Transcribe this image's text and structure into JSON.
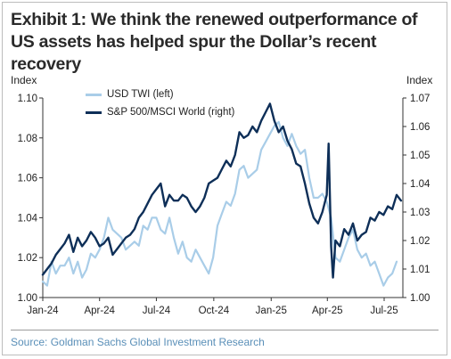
{
  "header": {
    "title": "Exhibit 1: We think the renewed outperformance of US assets has helped spur the Dollar’s recent recovery"
  },
  "footer": {
    "source": "Source: Goldman Sachs Global Investment Research"
  },
  "chart_data": {
    "type": "line",
    "left_axis_title": "Index",
    "right_axis_title": "Index",
    "x_ticks": [
      "Jan-24",
      "Apr-24",
      "Jul-24",
      "Oct-24",
      "Jan-25",
      "Apr-25",
      "Jul-25"
    ],
    "x_tick_dates": [
      "2024-01-01",
      "2024-04-01",
      "2024-07-01",
      "2024-10-01",
      "2025-01-01",
      "2025-04-01",
      "2025-07-01"
    ],
    "x_range": [
      "2024-01-01",
      "2025-07-31"
    ],
    "left_ylim": [
      1.0,
      1.1
    ],
    "left_ticks": [
      "1.00",
      "1.02",
      "1.04",
      "1.06",
      "1.08",
      "1.10"
    ],
    "right_ylim": [
      1.0,
      1.07
    ],
    "right_ticks": [
      "1.00",
      "1.01",
      "1.02",
      "1.03",
      "1.04",
      "1.05",
      "1.06",
      "1.07"
    ],
    "legend_position": "top-left",
    "grid": false,
    "series": [
      {
        "name": "USD TWI (left)",
        "axis": "left",
        "color": "#a9cde8",
        "points": [
          [
            "2024-01-01",
            1.008
          ],
          [
            "2024-01-08",
            1.006
          ],
          [
            "2024-01-15",
            1.018
          ],
          [
            "2024-01-22",
            1.012
          ],
          [
            "2024-01-29",
            1.016
          ],
          [
            "2024-02-05",
            1.016
          ],
          [
            "2024-02-12",
            1.02
          ],
          [
            "2024-02-19",
            1.012
          ],
          [
            "2024-02-26",
            1.018
          ],
          [
            "2024-03-04",
            1.01
          ],
          [
            "2024-03-11",
            1.014
          ],
          [
            "2024-03-18",
            1.022
          ],
          [
            "2024-03-25",
            1.02
          ],
          [
            "2024-04-01",
            1.024
          ],
          [
            "2024-04-08",
            1.03
          ],
          [
            "2024-04-15",
            1.04
          ],
          [
            "2024-04-22",
            1.034
          ],
          [
            "2024-04-29",
            1.032
          ],
          [
            "2024-05-06",
            1.03
          ],
          [
            "2024-05-13",
            1.024
          ],
          [
            "2024-05-20",
            1.026
          ],
          [
            "2024-05-27",
            1.028
          ],
          [
            "2024-06-03",
            1.026
          ],
          [
            "2024-06-10",
            1.036
          ],
          [
            "2024-06-17",
            1.034
          ],
          [
            "2024-06-24",
            1.04
          ],
          [
            "2024-07-01",
            1.04
          ],
          [
            "2024-07-08",
            1.034
          ],
          [
            "2024-07-15",
            1.032
          ],
          [
            "2024-07-22",
            1.04
          ],
          [
            "2024-07-29",
            1.03
          ],
          [
            "2024-08-05",
            1.022
          ],
          [
            "2024-08-12",
            1.028
          ],
          [
            "2024-08-19",
            1.02
          ],
          [
            "2024-08-26",
            1.018
          ],
          [
            "2024-09-02",
            1.024
          ],
          [
            "2024-09-09",
            1.02
          ],
          [
            "2024-09-16",
            1.016
          ],
          [
            "2024-09-23",
            1.012
          ],
          [
            "2024-09-30",
            1.02
          ],
          [
            "2024-10-07",
            1.036
          ],
          [
            "2024-10-14",
            1.042
          ],
          [
            "2024-10-21",
            1.048
          ],
          [
            "2024-10-28",
            1.046
          ],
          [
            "2024-11-04",
            1.052
          ],
          [
            "2024-11-11",
            1.064
          ],
          [
            "2024-11-18",
            1.066
          ],
          [
            "2024-11-25",
            1.06
          ],
          [
            "2024-12-02",
            1.062
          ],
          [
            "2024-12-09",
            1.064
          ],
          [
            "2024-12-16",
            1.074
          ],
          [
            "2024-12-23",
            1.078
          ],
          [
            "2024-12-30",
            1.082
          ],
          [
            "2025-01-06",
            1.086
          ],
          [
            "2025-01-13",
            1.088
          ],
          [
            "2025-01-20",
            1.08
          ],
          [
            "2025-01-27",
            1.076
          ],
          [
            "2025-02-03",
            1.082
          ],
          [
            "2025-02-10",
            1.076
          ],
          [
            "2025-02-17",
            1.072
          ],
          [
            "2025-02-24",
            1.074
          ],
          [
            "2025-03-03",
            1.06
          ],
          [
            "2025-03-10",
            1.05
          ],
          [
            "2025-03-17",
            1.05
          ],
          [
            "2025-03-24",
            1.052
          ],
          [
            "2025-03-31",
            1.048
          ],
          [
            "2025-04-07",
            1.04
          ],
          [
            "2025-04-14",
            1.02
          ],
          [
            "2025-04-21",
            1.018
          ],
          [
            "2025-04-28",
            1.024
          ],
          [
            "2025-05-05",
            1.03
          ],
          [
            "2025-05-12",
            1.034
          ],
          [
            "2025-05-19",
            1.024
          ],
          [
            "2025-05-26",
            1.02
          ],
          [
            "2025-06-02",
            1.022
          ],
          [
            "2025-06-09",
            1.016
          ],
          [
            "2025-06-16",
            1.018
          ],
          [
            "2025-06-23",
            1.012
          ],
          [
            "2025-06-30",
            1.006
          ],
          [
            "2025-07-07",
            1.01
          ],
          [
            "2025-07-14",
            1.012
          ],
          [
            "2025-07-21",
            1.018
          ]
        ]
      },
      {
        "name": "S&P 500/MSCI World (right)",
        "axis": "right",
        "color": "#0e2f58",
        "points": [
          [
            "2024-01-01",
            1.008
          ],
          [
            "2024-01-08",
            1.01
          ],
          [
            "2024-01-15",
            1.012
          ],
          [
            "2024-01-22",
            1.015
          ],
          [
            "2024-01-29",
            1.017
          ],
          [
            "2024-02-05",
            1.019
          ],
          [
            "2024-02-12",
            1.022
          ],
          [
            "2024-02-19",
            1.016
          ],
          [
            "2024-02-26",
            1.021
          ],
          [
            "2024-03-04",
            1.018
          ],
          [
            "2024-03-11",
            1.02
          ],
          [
            "2024-03-18",
            1.023
          ],
          [
            "2024-03-25",
            1.021
          ],
          [
            "2024-04-01",
            1.018
          ],
          [
            "2024-04-08",
            1.019
          ],
          [
            "2024-04-15",
            1.021
          ],
          [
            "2024-04-22",
            1.015
          ],
          [
            "2024-04-29",
            1.017
          ],
          [
            "2024-05-06",
            1.019
          ],
          [
            "2024-05-13",
            1.021
          ],
          [
            "2024-05-20",
            1.022
          ],
          [
            "2024-05-27",
            1.024
          ],
          [
            "2024-06-03",
            1.028
          ],
          [
            "2024-06-10",
            1.03
          ],
          [
            "2024-06-17",
            1.033
          ],
          [
            "2024-06-24",
            1.036
          ],
          [
            "2024-07-01",
            1.038
          ],
          [
            "2024-07-08",
            1.04
          ],
          [
            "2024-07-15",
            1.032
          ],
          [
            "2024-07-22",
            1.036
          ],
          [
            "2024-07-29",
            1.034
          ],
          [
            "2024-08-05",
            1.034
          ],
          [
            "2024-08-12",
            1.036
          ],
          [
            "2024-08-19",
            1.035
          ],
          [
            "2024-08-26",
            1.032
          ],
          [
            "2024-09-02",
            1.03
          ],
          [
            "2024-09-09",
            1.032
          ],
          [
            "2024-09-16",
            1.035
          ],
          [
            "2024-09-23",
            1.04
          ],
          [
            "2024-09-30",
            1.041
          ],
          [
            "2024-10-07",
            1.042
          ],
          [
            "2024-10-14",
            1.045
          ],
          [
            "2024-10-21",
            1.048
          ],
          [
            "2024-10-28",
            1.046
          ],
          [
            "2024-11-04",
            1.05
          ],
          [
            "2024-11-11",
            1.058
          ],
          [
            "2024-11-18",
            1.056
          ],
          [
            "2024-11-25",
            1.057
          ],
          [
            "2024-12-02",
            1.06
          ],
          [
            "2024-12-09",
            1.058
          ],
          [
            "2024-12-16",
            1.062
          ],
          [
            "2024-12-23",
            1.065
          ],
          [
            "2024-12-30",
            1.068
          ],
          [
            "2025-01-06",
            1.062
          ],
          [
            "2025-01-13",
            1.058
          ],
          [
            "2025-01-20",
            1.06
          ],
          [
            "2025-01-27",
            1.055
          ],
          [
            "2025-02-03",
            1.052
          ],
          [
            "2025-02-10",
            1.047
          ],
          [
            "2025-02-17",
            1.046
          ],
          [
            "2025-02-24",
            1.04
          ],
          [
            "2025-03-03",
            1.033
          ],
          [
            "2025-03-10",
            1.028
          ],
          [
            "2025-03-17",
            1.026
          ],
          [
            "2025-03-24",
            1.03
          ],
          [
            "2025-03-31",
            1.036
          ],
          [
            "2025-04-03",
            1.054
          ],
          [
            "2025-04-07",
            1.018
          ],
          [
            "2025-04-10",
            1.007
          ],
          [
            "2025-04-14",
            1.02
          ],
          [
            "2025-04-21",
            1.018
          ],
          [
            "2025-04-28",
            1.024
          ],
          [
            "2025-05-05",
            1.022
          ],
          [
            "2025-05-12",
            1.026
          ],
          [
            "2025-05-19",
            1.02
          ],
          [
            "2025-05-26",
            1.022
          ],
          [
            "2025-06-02",
            1.023
          ],
          [
            "2025-06-09",
            1.028
          ],
          [
            "2025-06-16",
            1.027
          ],
          [
            "2025-06-23",
            1.03
          ],
          [
            "2025-06-30",
            1.029
          ],
          [
            "2025-07-07",
            1.032
          ],
          [
            "2025-07-14",
            1.031
          ],
          [
            "2025-07-21",
            1.036
          ],
          [
            "2025-07-28",
            1.034
          ]
        ]
      }
    ]
  }
}
